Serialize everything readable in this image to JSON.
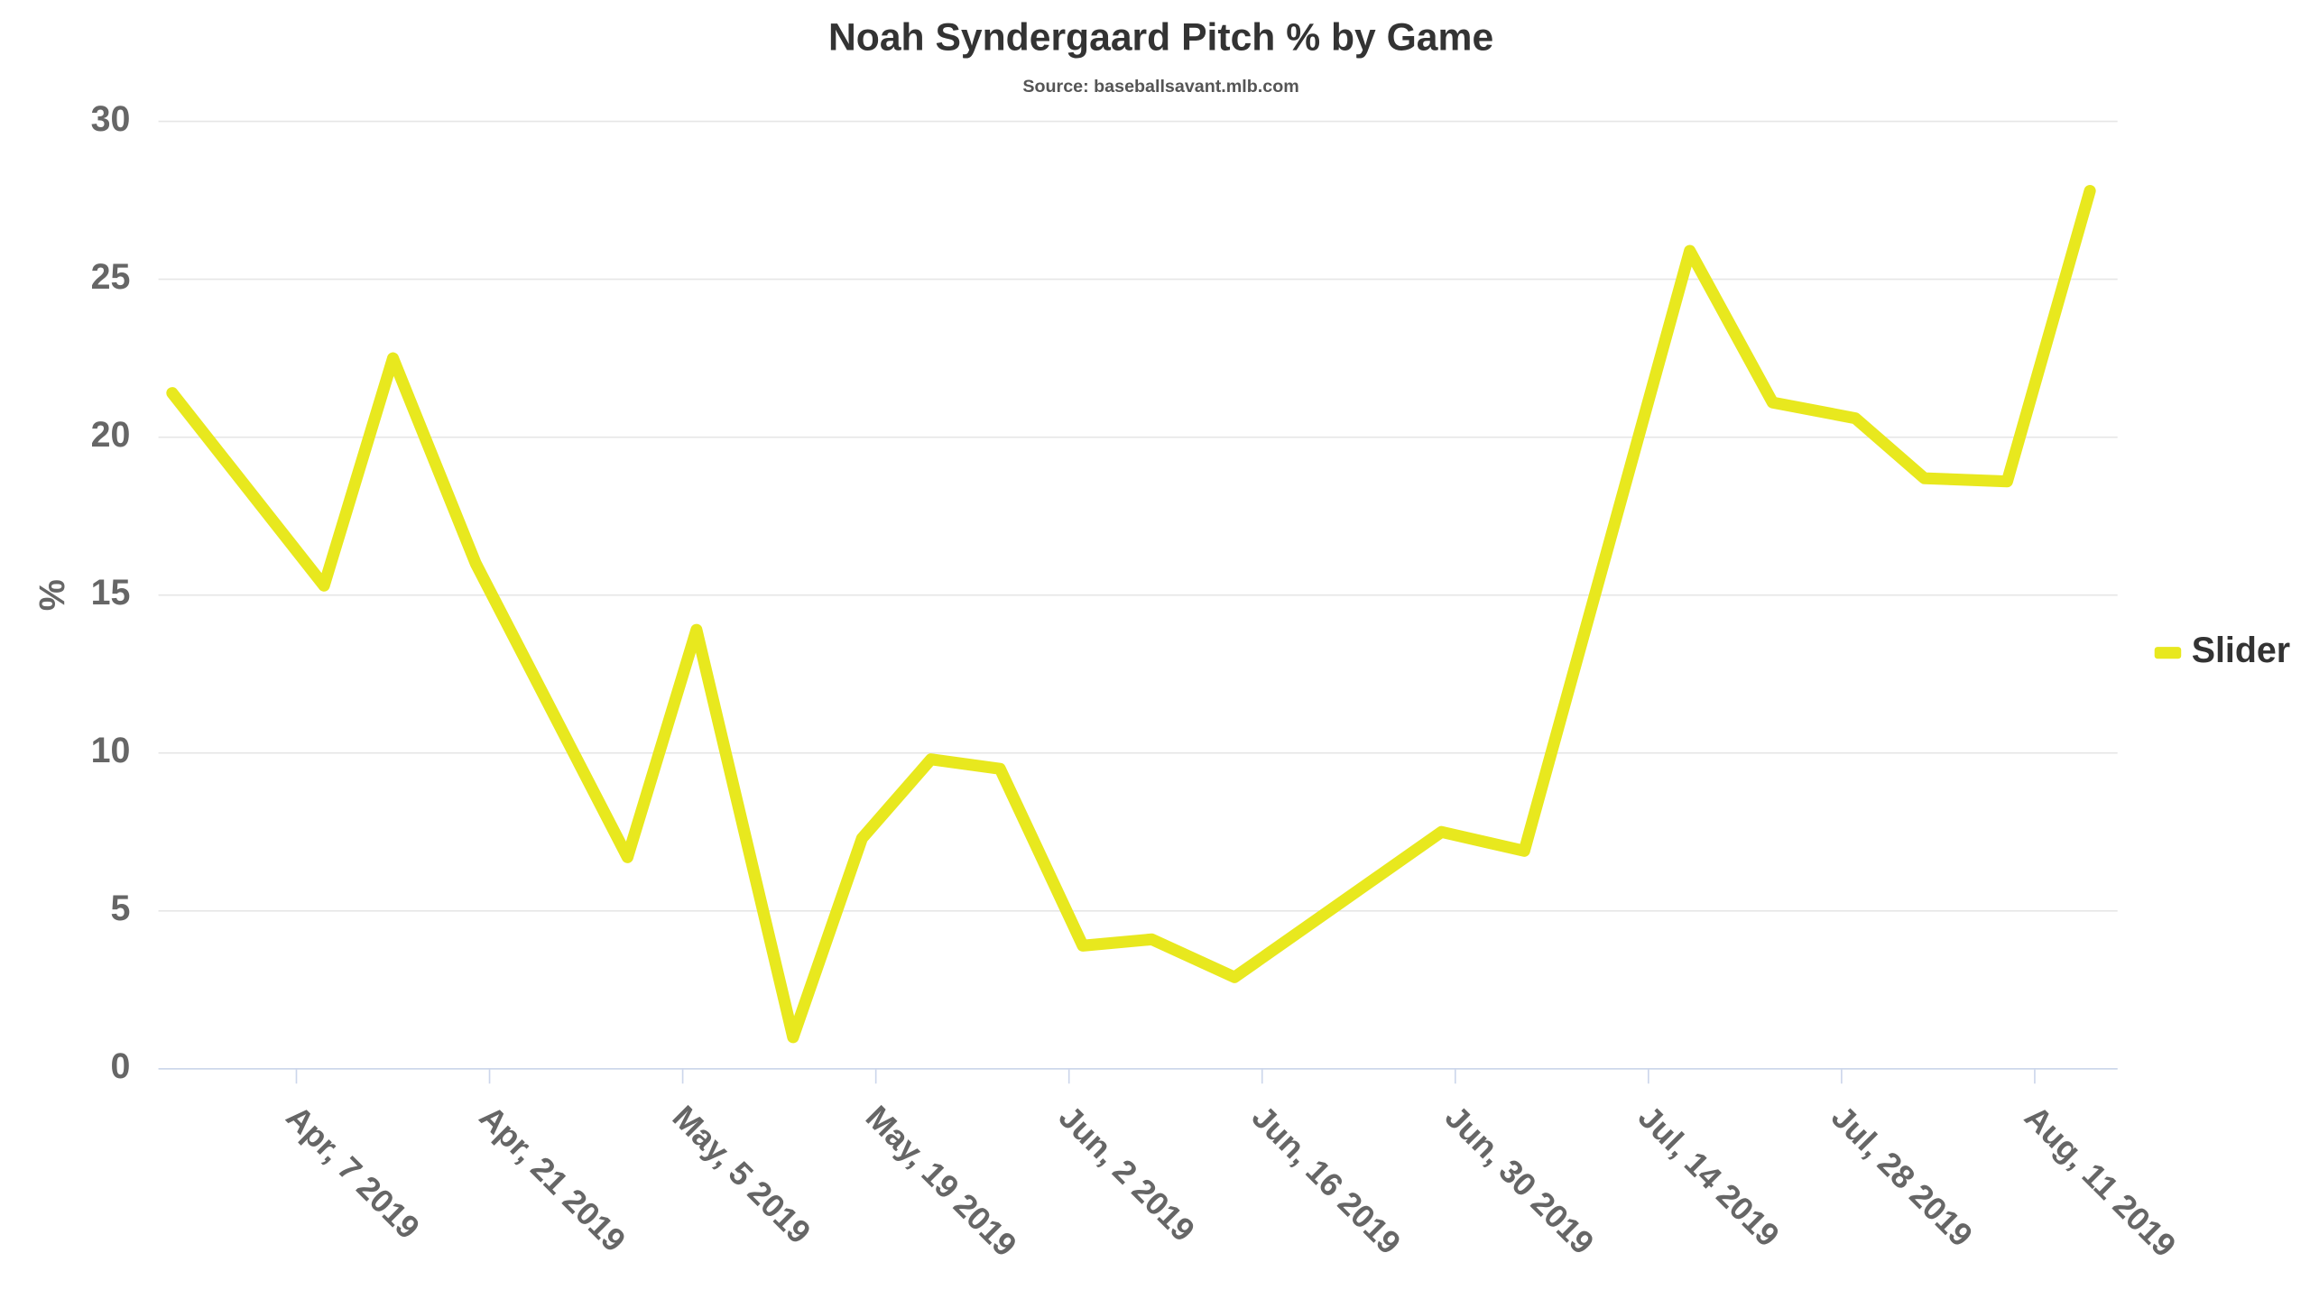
{
  "chart_data": {
    "type": "line",
    "title": "Noah Syndergaard Pitch % by Game",
    "subtitle": "Source: baseballsavant.mlb.com",
    "y_label": "%",
    "x": [
      "2019-03-29",
      "2019-04-09",
      "2019-04-14",
      "2019-04-20",
      "2019-05-01",
      "2019-05-06",
      "2019-05-13",
      "2019-05-18",
      "2019-05-23",
      "2019-05-28",
      "2019-06-03",
      "2019-06-08",
      "2019-06-14",
      "2019-06-29",
      "2019-07-05",
      "2019-07-17",
      "2019-07-23",
      "2019-07-29",
      "2019-08-03",
      "2019-08-09",
      "2019-08-15"
    ],
    "series": [
      {
        "name": "Slider",
        "color": "#e8e81e",
        "values": [
          21.4,
          15.3,
          22.5,
          16.0,
          6.7,
          13.9,
          1.0,
          7.3,
          9.8,
          9.5,
          3.9,
          4.1,
          2.9,
          7.5,
          6.9,
          25.9,
          21.1,
          20.6,
          18.7,
          18.6,
          27.8
        ]
      }
    ],
    "xlim": [
      "2019-03-28",
      "2019-08-17"
    ],
    "xticks": [
      {
        "value": "2019-04-07",
        "label": "Apr, 7 2019"
      },
      {
        "value": "2019-04-21",
        "label": "Apr, 21 2019"
      },
      {
        "value": "2019-05-05",
        "label": "May, 5 2019"
      },
      {
        "value": "2019-05-19",
        "label": "May, 19 2019"
      },
      {
        "value": "2019-06-02",
        "label": "Jun, 2 2019"
      },
      {
        "value": "2019-06-16",
        "label": "Jun, 16 2019"
      },
      {
        "value": "2019-06-30",
        "label": "Jun, 30 2019"
      },
      {
        "value": "2019-07-14",
        "label": "Jul, 14 2019"
      },
      {
        "value": "2019-07-28",
        "label": "Jul, 28 2019"
      },
      {
        "value": "2019-08-11",
        "label": "Aug, 11 2019"
      }
    ],
    "ylim": [
      0,
      30
    ],
    "yticks": [
      0,
      5,
      10,
      15,
      20,
      25,
      30
    ],
    "grid": true,
    "legend": "right"
  }
}
